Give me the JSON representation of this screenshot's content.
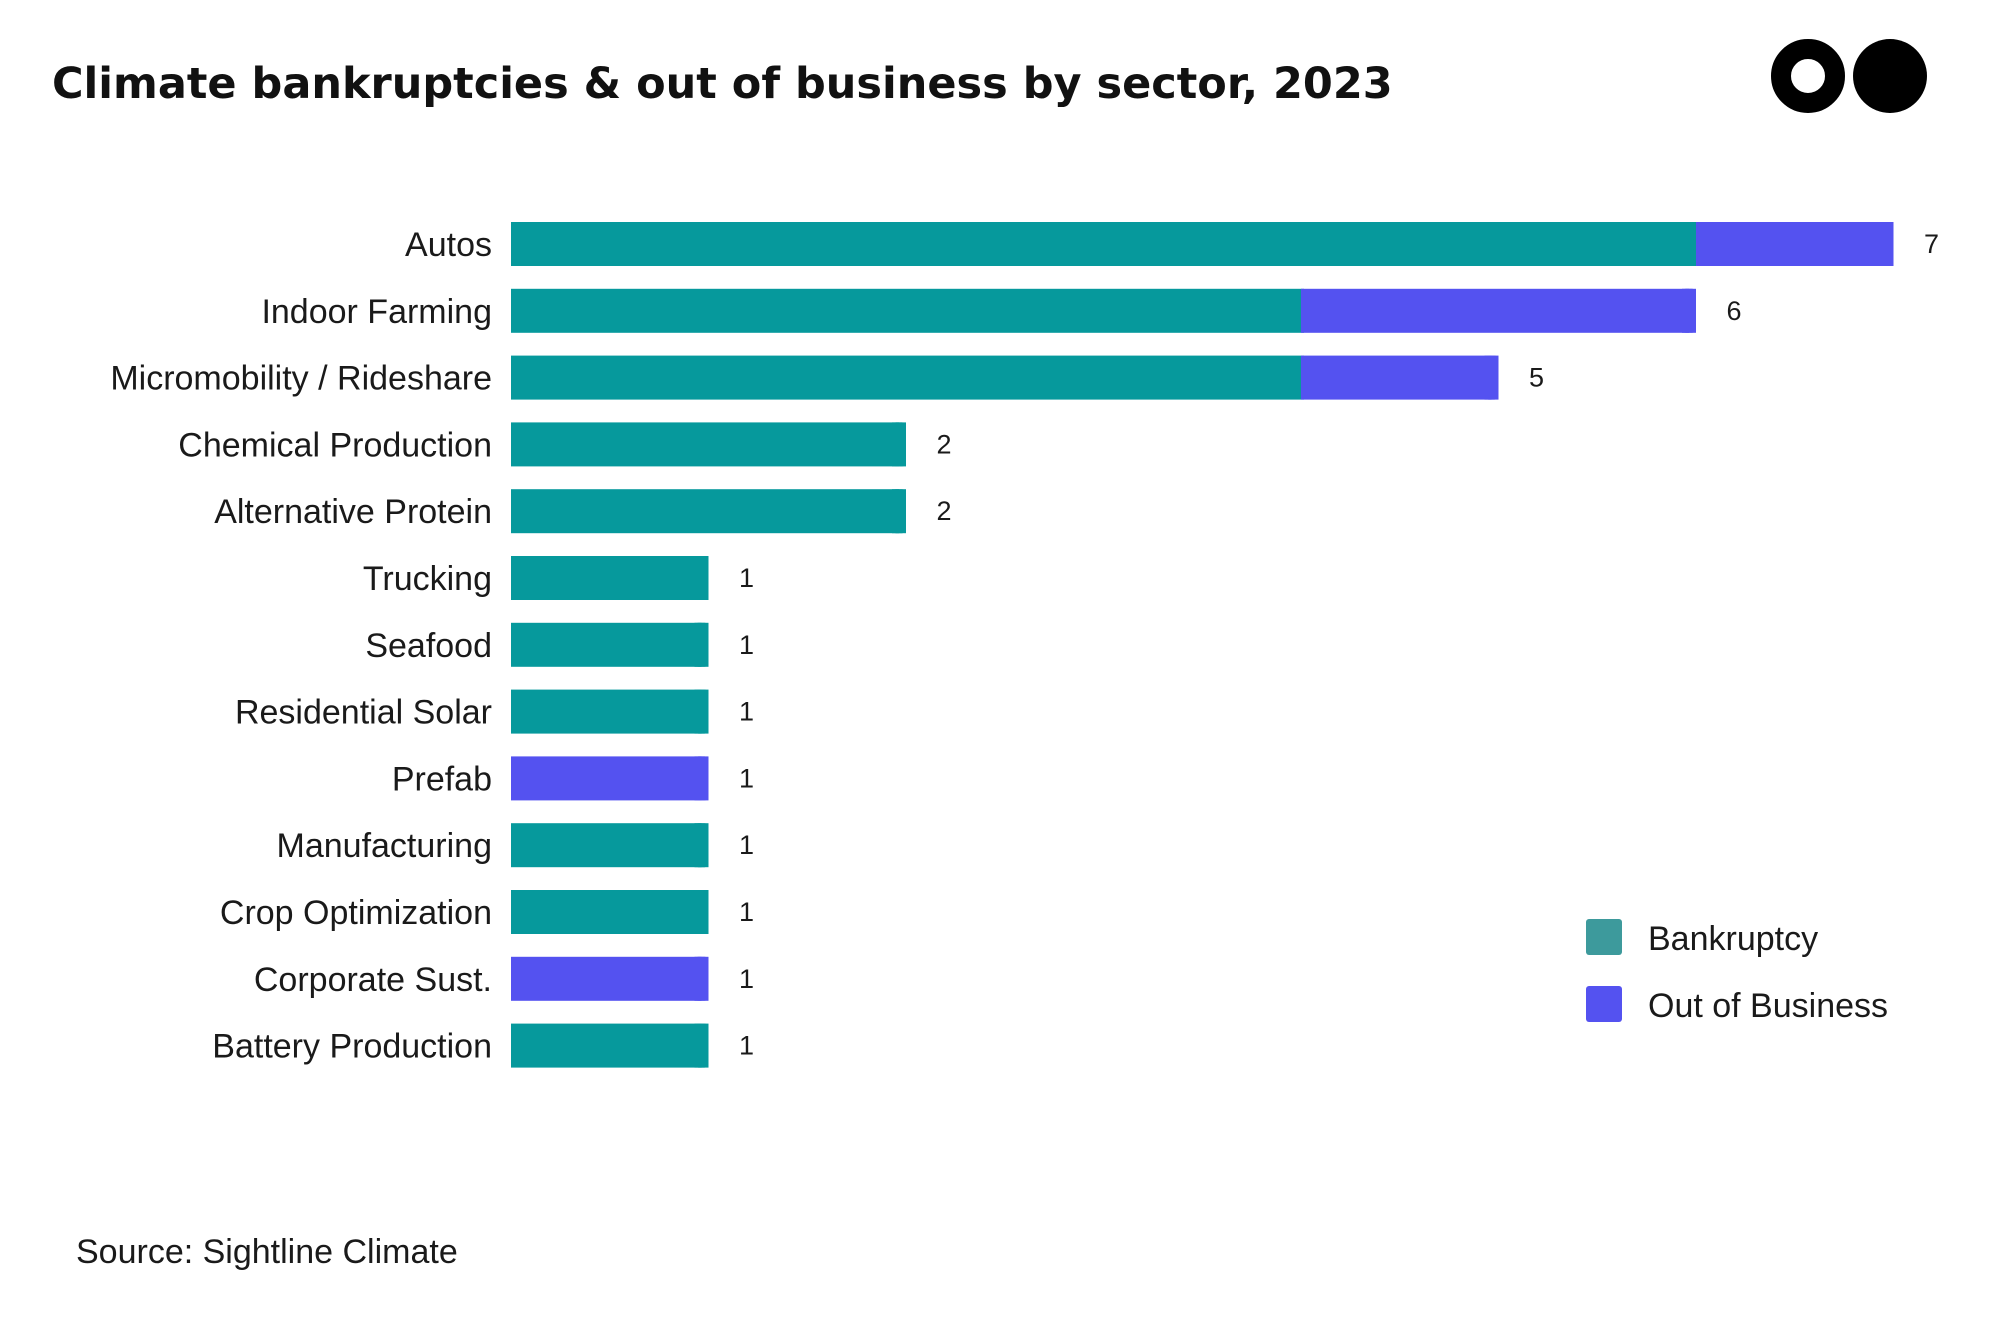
{
  "header": {
    "title": "Climate bankruptcies & out of business by sector, 2023",
    "logo": "two-circles-logo"
  },
  "footer": {
    "source": "Source: Sightline Climate"
  },
  "colors": {
    "bankruptcy": "#06999c",
    "out_of_business": "#5452f0",
    "legend_bankruptcy": "#3d9a9c"
  },
  "chart_data": {
    "type": "bar",
    "orientation": "horizontal",
    "stacked": true,
    "categories": [
      "Autos",
      "Indoor Farming",
      "Micromobility / Rideshare",
      "Chemical Production",
      "Alternative Protein",
      "Trucking",
      "Seafood",
      "Residential Solar",
      "Prefab",
      "Manufacturing",
      "Crop Optimization",
      "Corporate Sust.",
      "Battery Production"
    ],
    "series": [
      {
        "name": "Bankruptcy",
        "values": [
          6,
          4,
          4,
          2,
          2,
          1,
          1,
          1,
          0,
          1,
          1,
          0,
          1
        ]
      },
      {
        "name": "Out of Business",
        "values": [
          1,
          2,
          1,
          0,
          0,
          0,
          0,
          0,
          1,
          0,
          0,
          1,
          0
        ]
      }
    ],
    "totals": [
      7,
      6,
      5,
      2,
      2,
      1,
      1,
      1,
      1,
      1,
      1,
      1,
      1
    ],
    "xlim": [
      0,
      7
    ],
    "grid": false,
    "legend": "bottom-right",
    "title": "Climate bankruptcies & out of business by sector, 2023",
    "xlabel": "",
    "ylabel": ""
  }
}
